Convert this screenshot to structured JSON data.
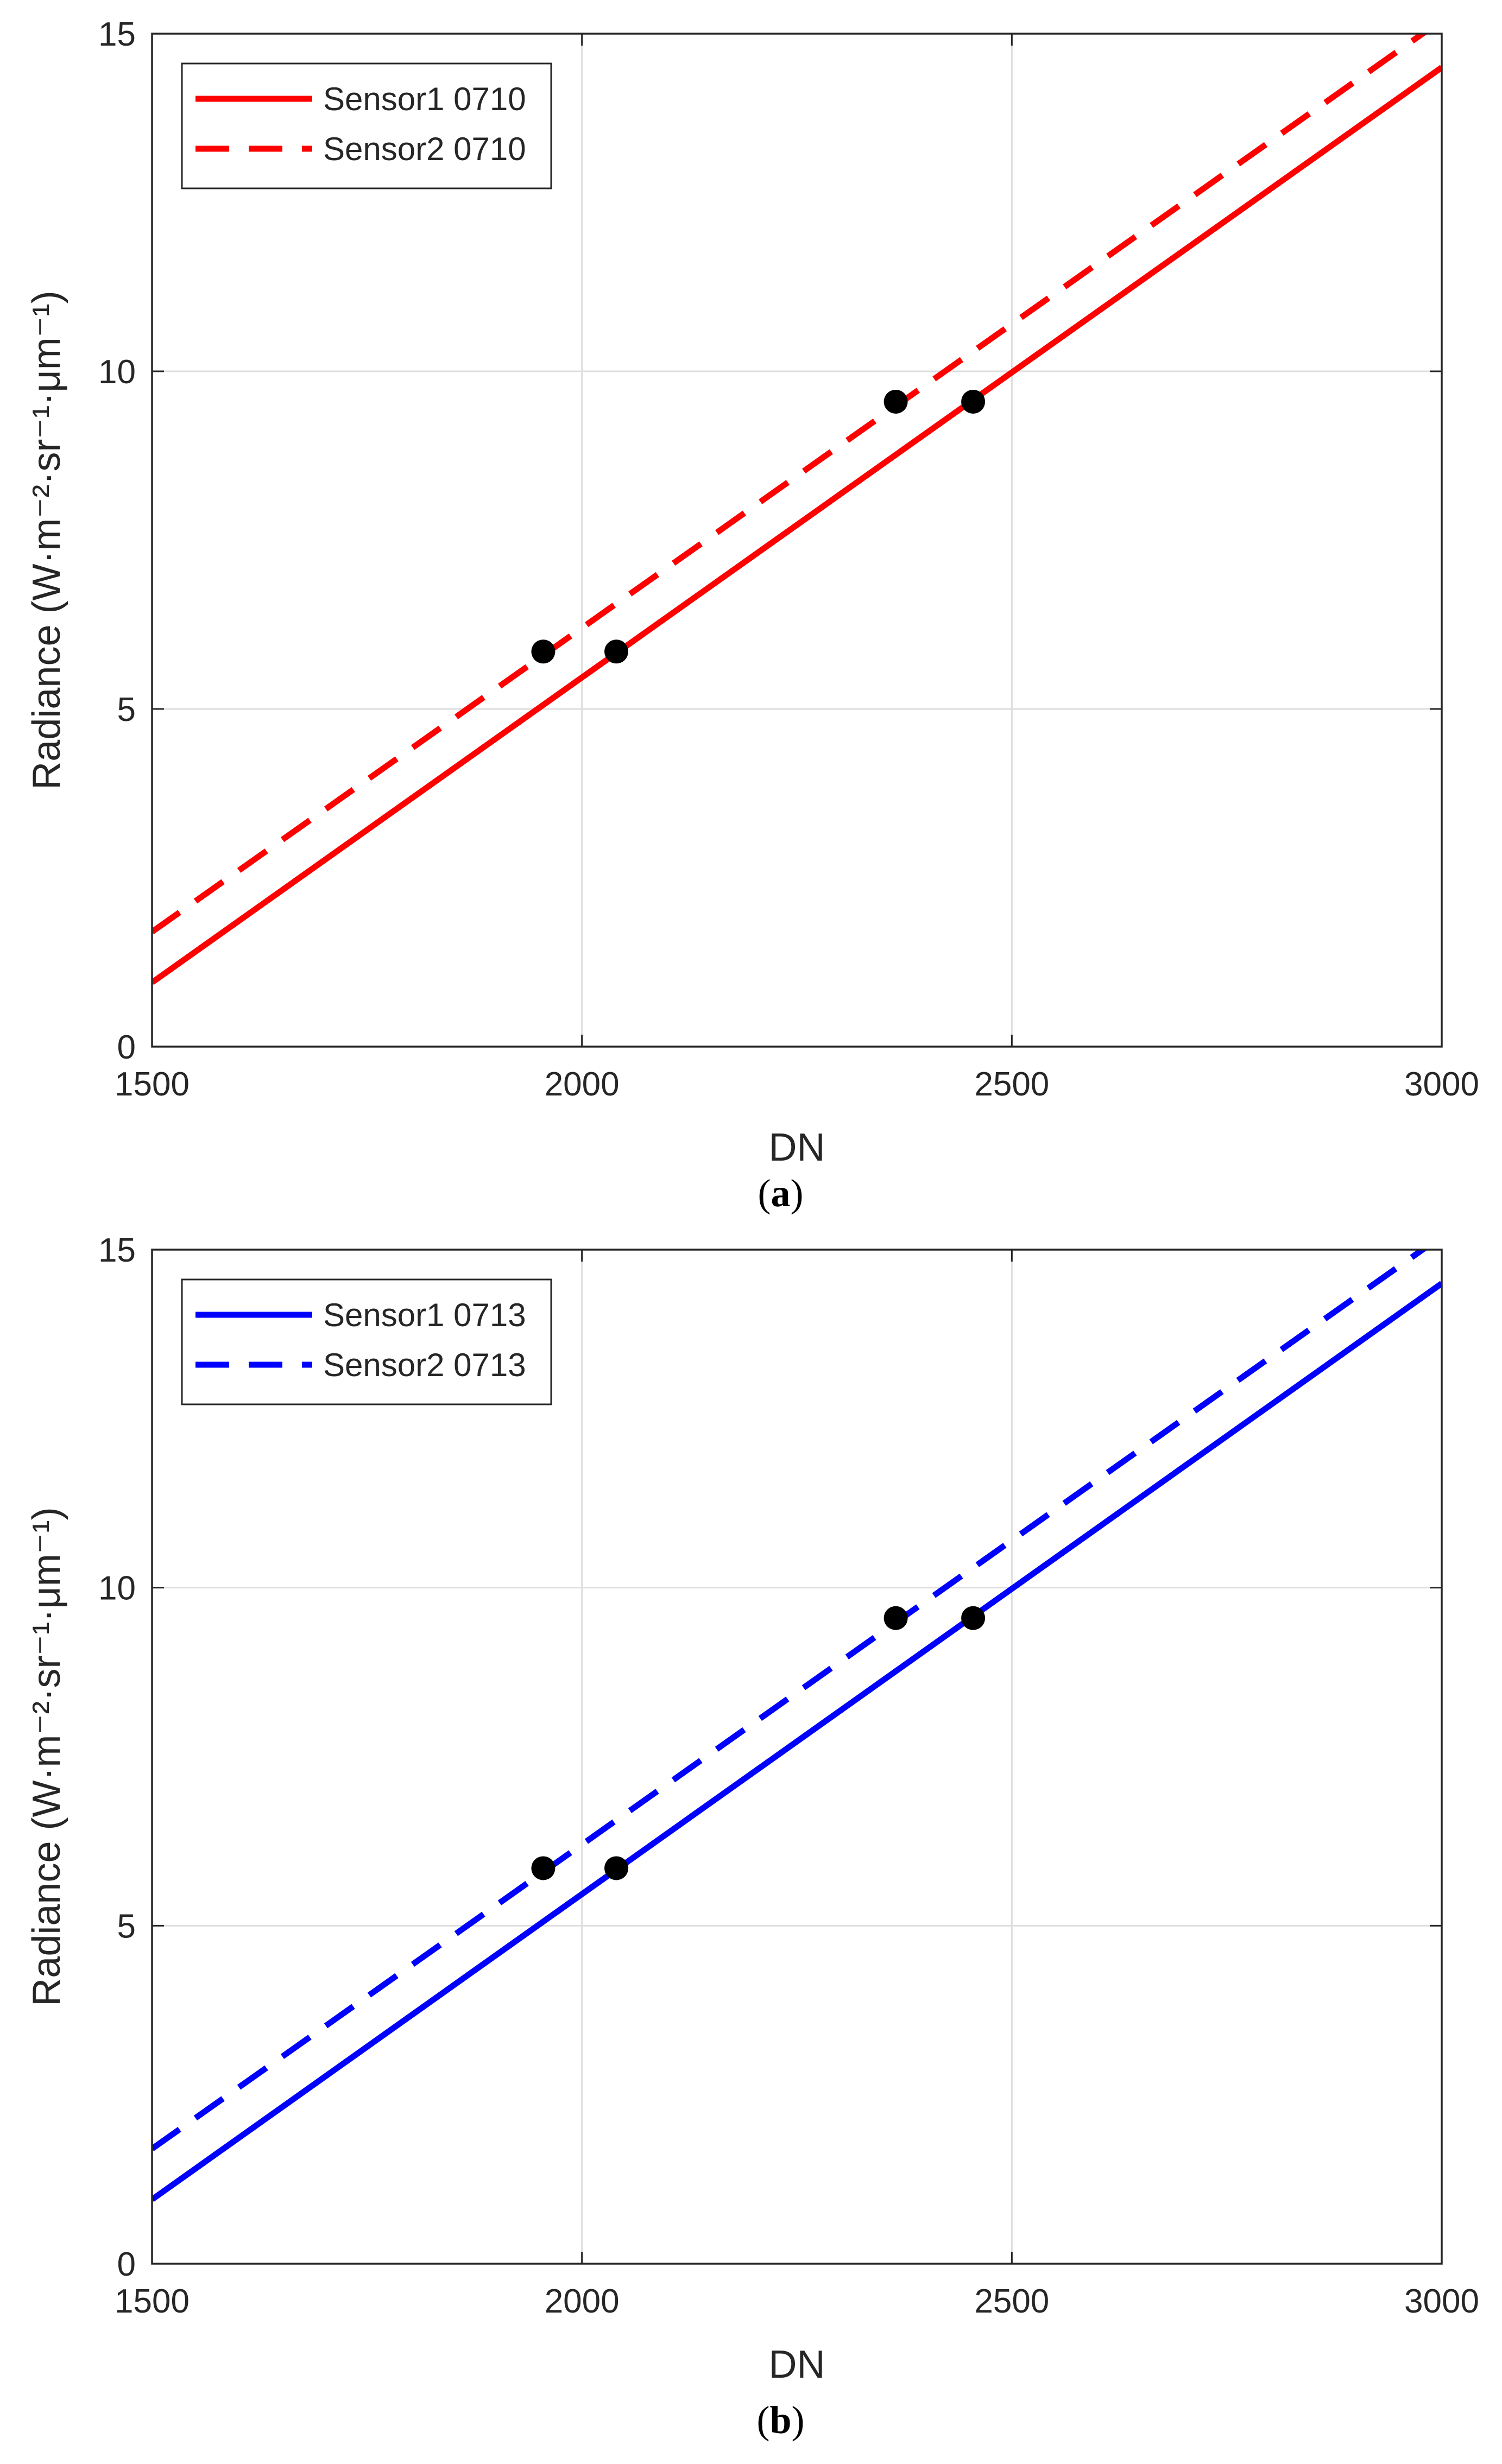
{
  "chart_data": [
    {
      "type": "line",
      "panel_label": "a",
      "xlabel": "DN",
      "ylabel": "Radiance (W·m⁻²·sr⁻¹·μm⁻¹)",
      "xlim": [
        1500,
        3000
      ],
      "ylim": [
        0,
        15
      ],
      "xticks": [
        "1500",
        "2000",
        "2500",
        "3000"
      ],
      "yticks": [
        "0",
        "5",
        "10",
        "15"
      ],
      "grid": true,
      "legend_position": "top-left",
      "series": [
        {
          "name": "Sensor1 0710",
          "color": "#ff0000",
          "style": "solid",
          "x": [
            1500,
            3000
          ],
          "y": [
            0.95,
            14.5
          ]
        },
        {
          "name": "Sensor2 0710",
          "color": "#ff0000",
          "style": "dashed",
          "x": [
            1500,
            3000
          ],
          "y": [
            1.7,
            15.2
          ]
        }
      ],
      "points": {
        "color": "#000000",
        "x": [
          1955,
          2040,
          2365,
          2455
        ],
        "y": [
          5.85,
          5.85,
          9.55,
          9.55
        ]
      }
    },
    {
      "type": "line",
      "panel_label": "b",
      "xlabel": "DN",
      "ylabel": "Radiance (W·m⁻²·sr⁻¹·μm⁻¹)",
      "xlim": [
        1500,
        3000
      ],
      "ylim": [
        0,
        15
      ],
      "xticks": [
        "1500",
        "2000",
        "2500",
        "3000"
      ],
      "yticks": [
        "0",
        "5",
        "10",
        "15"
      ],
      "grid": true,
      "legend_position": "top-left",
      "series": [
        {
          "name": "Sensor1 0713",
          "color": "#0000ff",
          "style": "solid",
          "x": [
            1500,
            3000
          ],
          "y": [
            0.95,
            14.5
          ]
        },
        {
          "name": "Sensor2 0713",
          "color": "#0000ff",
          "style": "dashed",
          "x": [
            1500,
            3000
          ],
          "y": [
            1.7,
            15.2
          ]
        }
      ],
      "points": {
        "color": "#000000",
        "x": [
          1955,
          2040,
          2365,
          2455
        ],
        "y": [
          5.85,
          5.85,
          9.55,
          9.55
        ]
      }
    }
  ]
}
